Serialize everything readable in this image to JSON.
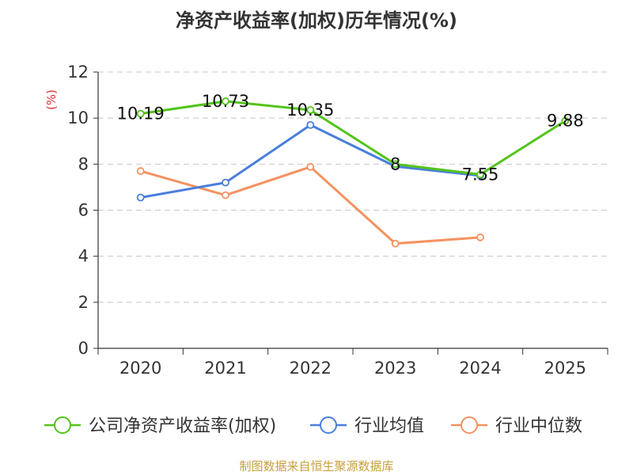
{
  "chart_data": {
    "type": "line",
    "title": "净资产收益率(加权)历年情况(%)",
    "ylabel": "(%)",
    "xlabel": "",
    "ylim": [
      0,
      12
    ],
    "yticks": [
      0,
      2,
      4,
      6,
      8,
      10,
      12
    ],
    "grid": true,
    "legend_position": "bottom",
    "categories": [
      "2020",
      "2021",
      "2022",
      "2023",
      "2024",
      "2025"
    ],
    "series": [
      {
        "name": "公司净资产收益率(加权)",
        "color": "#52c41a",
        "values": [
          10.19,
          10.73,
          10.35,
          8,
          7.55,
          9.88
        ],
        "labels": [
          "10.19",
          "10.73",
          "10.35",
          "8",
          "7.55",
          "9.88"
        ]
      },
      {
        "name": "行业均值",
        "color": "#4a7fdc",
        "values": [
          6.55,
          7.2,
          9.7,
          7.9,
          7.5,
          null
        ]
      },
      {
        "name": "行业中位数",
        "color": "#f59260",
        "values": [
          7.7,
          6.65,
          7.88,
          4.55,
          4.82,
          null
        ]
      }
    ]
  },
  "source_text": "制图数据来自恒生聚源数据库"
}
